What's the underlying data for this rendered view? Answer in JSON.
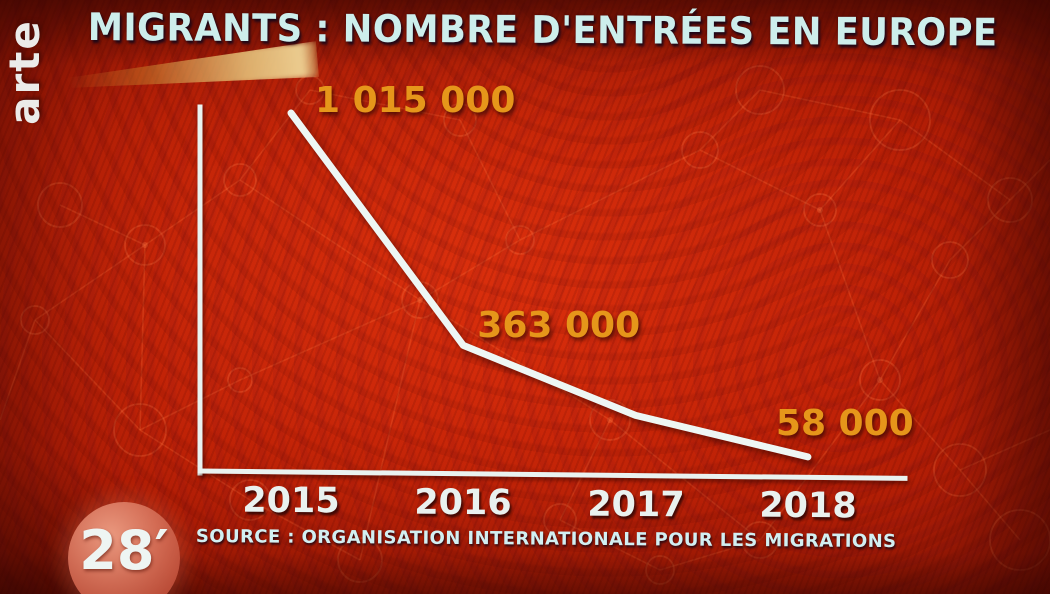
{
  "title": {
    "text": "MIGRANTS : NOMBRE D'ENTRÉES EN EUROPE"
  },
  "branding": {
    "channel_logo": "arte",
    "show_logo": "28′"
  },
  "source": {
    "text": "SOURCE : ORGANISATION INTERNATIONALE POUR LES MIGRATIONS"
  },
  "colors": {
    "background_red": "#c32007",
    "title_cyan": "#cdeeec",
    "data_label_orange": "#e6961a",
    "line_white": "#eef6f4",
    "year_label_white": "#e9f1ef",
    "logo_circle_salmon": "#d6705a"
  },
  "chart_data": {
    "type": "line",
    "title": "MIGRANTS : NOMBRE D'ENTRÉES EN EUROPE",
    "x": [
      "2015",
      "2016",
      "2017",
      "2018"
    ],
    "points": [
      {
        "year": "2015",
        "value": 1015000,
        "label": "1 015 000",
        "estimated": false
      },
      {
        "year": "2016",
        "value": 363000,
        "label": "363 000",
        "estimated": false
      },
      {
        "year": "2017",
        "value": 170000,
        "label": null,
        "estimated": true
      },
      {
        "year": "2018",
        "value": 58000,
        "label": "58 000",
        "estimated": false
      }
    ],
    "ylim": [
      0,
      1015000
    ],
    "grid": false,
    "legend": null,
    "source": "SOURCE : ORGANISATION INTERNATIONALE POUR LES MIGRATIONS"
  }
}
